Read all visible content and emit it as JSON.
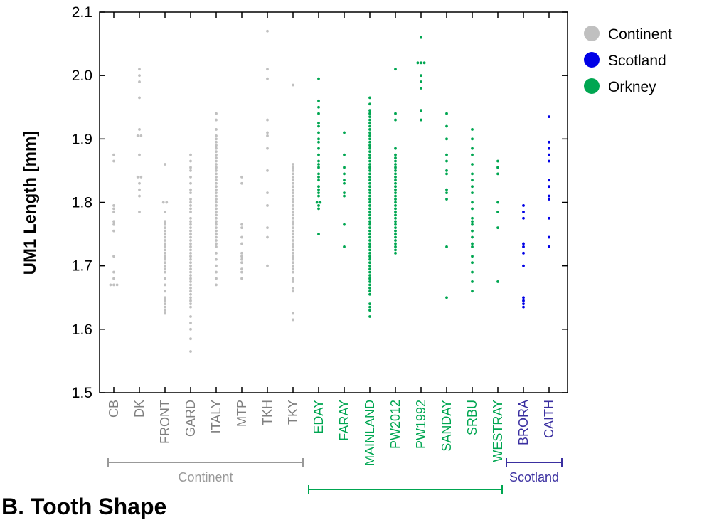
{
  "section_title": "B. Tooth Shape",
  "chart_data": {
    "type": "scatter",
    "ylabel": "UM1 Length [mm]",
    "ylim": [
      1.5,
      2.1
    ],
    "yticks": [
      "1.5",
      "1.6",
      "1.7",
      "1.8",
      "1.9",
      "2.0",
      "2.1"
    ],
    "grid": false,
    "legend": {
      "position": "top-right",
      "entries": [
        {
          "label": "Continent",
          "color": "#c0c0c0"
        },
        {
          "label": "Scotland",
          "color": "#0000e6"
        },
        {
          "label": "Orkney",
          "color": "#00a651"
        }
      ]
    },
    "groups": [
      {
        "label": "Continent",
        "color": "#999999",
        "from": "CB",
        "to": "TKY"
      },
      {
        "label": "Orkney",
        "color": "#00a651",
        "from": "EDAY",
        "to": "WESTRAY"
      },
      {
        "label": "Scotland",
        "color": "#3a2fa0",
        "from": "BRORA",
        "to": "CAITH"
      }
    ],
    "series": [
      {
        "category": "CB",
        "group": "Continent",
        "color": "#c0c0c0",
        "label_color": "#808080",
        "values": [
          1.875,
          1.865,
          1.795,
          1.79,
          1.785,
          1.77,
          1.765,
          1.755,
          1.715,
          1.69,
          1.68,
          1.67,
          1.67,
          1.67
        ]
      },
      {
        "category": "DK",
        "group": "Continent",
        "color": "#c0c0c0",
        "label_color": "#808080",
        "values": [
          2.01,
          2.0,
          1.99,
          1.965,
          1.915,
          1.905,
          1.905,
          1.875,
          1.84,
          1.84,
          1.83,
          1.82,
          1.81,
          1.785
        ]
      },
      {
        "category": "FRONT",
        "group": "Continent",
        "color": "#c0c0c0",
        "label_color": "#808080",
        "values": [
          1.86,
          1.8,
          1.8,
          1.785,
          1.77,
          1.765,
          1.76,
          1.755,
          1.75,
          1.745,
          1.74,
          1.735,
          1.73,
          1.725,
          1.72,
          1.715,
          1.71,
          1.705,
          1.7,
          1.695,
          1.69,
          1.68,
          1.67,
          1.66,
          1.65,
          1.645,
          1.64,
          1.635,
          1.63,
          1.625
        ]
      },
      {
        "category": "GARD",
        "group": "Continent",
        "color": "#c0c0c0",
        "label_color": "#808080",
        "values": [
          1.875,
          1.865,
          1.855,
          1.85,
          1.84,
          1.83,
          1.82,
          1.815,
          1.805,
          1.8,
          1.795,
          1.79,
          1.785,
          1.775,
          1.77,
          1.765,
          1.76,
          1.755,
          1.75,
          1.745,
          1.74,
          1.735,
          1.73,
          1.725,
          1.72,
          1.715,
          1.71,
          1.705,
          1.7,
          1.695,
          1.69,
          1.685,
          1.68,
          1.675,
          1.67,
          1.665,
          1.66,
          1.655,
          1.65,
          1.645,
          1.64,
          1.635,
          1.62,
          1.61,
          1.6,
          1.585,
          1.565
        ]
      },
      {
        "category": "ITALY",
        "group": "Continent",
        "color": "#c0c0c0",
        "label_color": "#808080",
        "values": [
          1.94,
          1.93,
          1.915,
          1.905,
          1.9,
          1.895,
          1.89,
          1.885,
          1.88,
          1.875,
          1.87,
          1.865,
          1.86,
          1.855,
          1.85,
          1.845,
          1.84,
          1.835,
          1.83,
          1.825,
          1.82,
          1.815,
          1.81,
          1.805,
          1.8,
          1.795,
          1.79,
          1.785,
          1.78,
          1.775,
          1.77,
          1.765,
          1.76,
          1.755,
          1.75,
          1.745,
          1.74,
          1.735,
          1.73,
          1.72,
          1.71,
          1.7,
          1.69,
          1.68,
          1.67
        ]
      },
      {
        "category": "MTP",
        "group": "Continent",
        "color": "#c0c0c0",
        "label_color": "#808080",
        "values": [
          1.84,
          1.83,
          1.765,
          1.76,
          1.745,
          1.735,
          1.72,
          1.715,
          1.71,
          1.705,
          1.695,
          1.69,
          1.68
        ]
      },
      {
        "category": "TKH",
        "group": "Continent",
        "color": "#c0c0c0",
        "label_color": "#808080",
        "values": [
          2.07,
          2.01,
          1.995,
          1.93,
          1.91,
          1.905,
          1.885,
          1.85,
          1.815,
          1.795,
          1.76,
          1.745,
          1.7
        ]
      },
      {
        "category": "TKY",
        "group": "Continent",
        "color": "#c0c0c0",
        "label_color": "#808080",
        "values": [
          1.985,
          1.86,
          1.855,
          1.85,
          1.845,
          1.84,
          1.835,
          1.83,
          1.825,
          1.82,
          1.815,
          1.81,
          1.805,
          1.8,
          1.795,
          1.79,
          1.785,
          1.78,
          1.775,
          1.77,
          1.765,
          1.76,
          1.755,
          1.75,
          1.745,
          1.74,
          1.735,
          1.73,
          1.725,
          1.72,
          1.715,
          1.71,
          1.705,
          1.7,
          1.695,
          1.69,
          1.68,
          1.675,
          1.665,
          1.66,
          1.625,
          1.615
        ]
      },
      {
        "category": "EDAY",
        "group": "Orkney",
        "color": "#00a651",
        "label_color": "#00a651",
        "values": [
          1.995,
          1.96,
          1.95,
          1.94,
          1.925,
          1.92,
          1.91,
          1.9,
          1.895,
          1.885,
          1.875,
          1.865,
          1.86,
          1.855,
          1.845,
          1.84,
          1.835,
          1.825,
          1.82,
          1.815,
          1.81,
          1.8,
          1.8,
          1.795,
          1.79,
          1.75
        ]
      },
      {
        "category": "FARAY",
        "group": "Orkney",
        "color": "#00a651",
        "label_color": "#00a651",
        "values": [
          1.91,
          1.875,
          1.855,
          1.845,
          1.835,
          1.83,
          1.815,
          1.81,
          1.765,
          1.73
        ]
      },
      {
        "category": "MAINLAND",
        "group": "Orkney",
        "color": "#00a651",
        "label_color": "#00a651",
        "values": [
          1.965,
          1.955,
          1.945,
          1.94,
          1.935,
          1.93,
          1.925,
          1.92,
          1.915,
          1.91,
          1.905,
          1.9,
          1.895,
          1.89,
          1.885,
          1.88,
          1.875,
          1.87,
          1.865,
          1.86,
          1.855,
          1.85,
          1.845,
          1.84,
          1.835,
          1.83,
          1.825,
          1.82,
          1.815,
          1.81,
          1.805,
          1.8,
          1.795,
          1.79,
          1.785,
          1.78,
          1.775,
          1.77,
          1.765,
          1.76,
          1.755,
          1.75,
          1.745,
          1.74,
          1.735,
          1.73,
          1.725,
          1.72,
          1.715,
          1.71,
          1.705,
          1.7,
          1.695,
          1.69,
          1.685,
          1.68,
          1.675,
          1.67,
          1.665,
          1.66,
          1.655,
          1.64,
          1.635,
          1.63,
          1.62
        ]
      },
      {
        "category": "PW2012",
        "group": "Orkney",
        "color": "#00a651",
        "label_color": "#00a651",
        "values": [
          2.01,
          1.94,
          1.93,
          1.885,
          1.875,
          1.87,
          1.865,
          1.86,
          1.855,
          1.85,
          1.845,
          1.84,
          1.835,
          1.83,
          1.825,
          1.82,
          1.815,
          1.81,
          1.805,
          1.8,
          1.795,
          1.79,
          1.785,
          1.78,
          1.775,
          1.77,
          1.765,
          1.76,
          1.755,
          1.75,
          1.745,
          1.74,
          1.735,
          1.73,
          1.725,
          1.72
        ]
      },
      {
        "category": "PW1992",
        "group": "Orkney",
        "color": "#00a651",
        "label_color": "#00a651",
        "values": [
          2.06,
          2.02,
          2.02,
          2.02,
          2.0,
          1.99,
          1.98,
          1.945,
          1.93
        ]
      },
      {
        "category": "SANDAY",
        "group": "Orkney",
        "color": "#00a651",
        "label_color": "#00a651",
        "values": [
          1.94,
          1.92,
          1.9,
          1.875,
          1.865,
          1.85,
          1.845,
          1.82,
          1.815,
          1.805,
          1.73,
          1.65
        ]
      },
      {
        "category": "SRBU",
        "group": "Orkney",
        "color": "#00a651",
        "label_color": "#00a651",
        "values": [
          1.915,
          1.9,
          1.885,
          1.875,
          1.86,
          1.845,
          1.835,
          1.825,
          1.815,
          1.8,
          1.79,
          1.775,
          1.77,
          1.765,
          1.755,
          1.745,
          1.735,
          1.73,
          1.715,
          1.705,
          1.69,
          1.675,
          1.66
        ]
      },
      {
        "category": "WESTRAY",
        "group": "Orkney",
        "color": "#00a651",
        "label_color": "#00a651",
        "values": [
          1.865,
          1.855,
          1.845,
          1.8,
          1.785,
          1.76,
          1.675
        ]
      },
      {
        "category": "BRORA",
        "group": "Scotland",
        "color": "#0000e6",
        "label_color": "#3a2fa0",
        "values": [
          1.795,
          1.785,
          1.775,
          1.735,
          1.73,
          1.72,
          1.7,
          1.65,
          1.645,
          1.64,
          1.635
        ]
      },
      {
        "category": "CAITH",
        "group": "Scotland",
        "color": "#0000e6",
        "label_color": "#3a2fa0",
        "values": [
          1.935,
          1.895,
          1.885,
          1.875,
          1.865,
          1.835,
          1.825,
          1.81,
          1.805,
          1.775,
          1.745,
          1.73
        ]
      }
    ]
  }
}
